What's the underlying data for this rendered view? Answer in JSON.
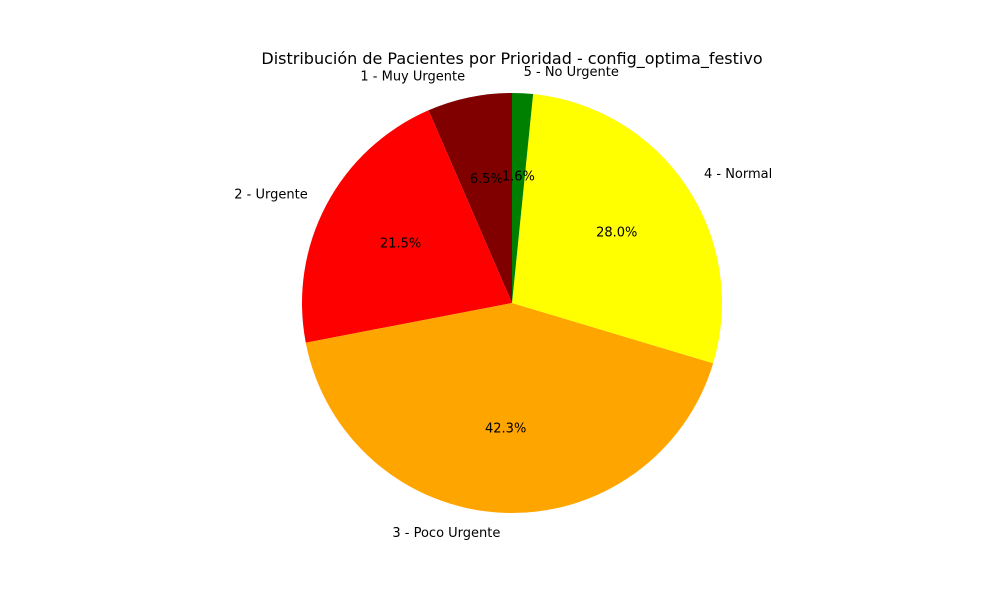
{
  "chart_data": {
    "type": "pie",
    "title": "Distribución de Pacientes por Prioridad - config_optima_festivo",
    "start_angle_deg": 90,
    "direction": "counterclockwise",
    "slices": [
      {
        "label": "1 - Muy Urgente",
        "value": 6.5,
        "pct_label": "6.5%",
        "color": "#800000"
      },
      {
        "label": "2 - Urgente",
        "value": 21.5,
        "pct_label": "21.5%",
        "color": "#ff0000"
      },
      {
        "label": "3 - Poco Urgente",
        "value": 42.3,
        "pct_label": "42.3%",
        "color": "#ffa500"
      },
      {
        "label": "4 - Normal",
        "value": 28.0,
        "pct_label": "28.0%",
        "color": "#ffff00"
      },
      {
        "label": "5 - No Urgente",
        "value": 1.6,
        "pct_label": "1.6%",
        "color": "#008000"
      }
    ]
  }
}
